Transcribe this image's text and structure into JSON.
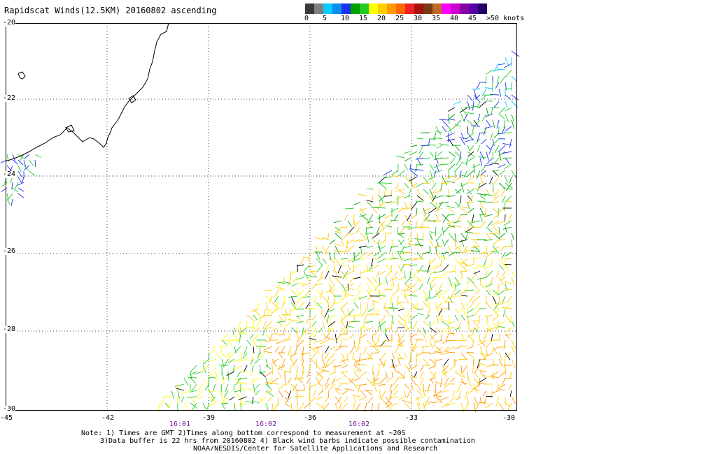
{
  "title": "Rapidscat Winds(12.5KM) 20160802 ascending",
  "legend": {
    "colors": [
      "#3a3a3a",
      "#7f7f7f",
      "#00ccff",
      "#0a8ef0",
      "#1a33ee",
      "#00a000",
      "#22cc22",
      "#ffff00",
      "#ffcc00",
      "#ff9900",
      "#ff6600",
      "#ee2222",
      "#aa1111",
      "#7a3a14",
      "#c06a2a",
      "#ff00ff",
      "#cc00cc",
      "#8800aa",
      "#5500aa",
      "#220066"
    ],
    "labels": [
      "0",
      "5",
      "10",
      "15",
      "20",
      "25",
      "30",
      "35",
      "40",
      "45",
      ">50 knots"
    ]
  },
  "map": {
    "lat_labels": [
      "-20",
      "-22",
      "-24",
      "-26",
      "-28",
      "-30"
    ],
    "lon_labels": [
      "-45",
      "-42",
      "-39",
      "-36",
      "-33",
      "-30"
    ],
    "time_labels": [
      "16:01",
      "16:02",
      "16:02"
    ],
    "lon_range": [
      -45,
      -30
    ],
    "lat_range": [
      -30,
      -20
    ],
    "land_color": "#000000",
    "grid": "dotted"
  },
  "notes": {
    "line1": "Note: 1) Times are GMT 2)Times along bottom correspond to measurement at ~20S",
    "line2": "3)Data buffer is 22 hrs from 20160802 4) Black wind barbs indicate possible contamination",
    "line3": "NOAA/NESDIS/Center for Satellite Applications and Research"
  }
}
